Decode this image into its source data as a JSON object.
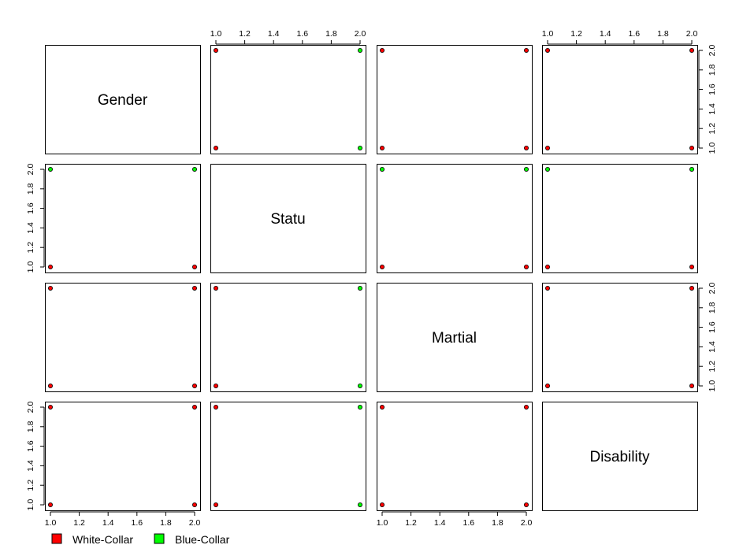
{
  "chart_data": {
    "type": "scatter",
    "variables": [
      "Gender",
      "Statu",
      "Martial",
      "Disability"
    ],
    "axis_range": [
      1.0,
      2.0
    ],
    "ticks": [
      "1.0",
      "1.2",
      "1.4",
      "1.6",
      "1.8",
      "2.0"
    ],
    "groups": [
      {
        "label": "White-Collar",
        "color": "#ff0000"
      },
      {
        "label": "Blue-Collar",
        "color": "#00ff00"
      }
    ],
    "points": [
      {
        "row": "Statu",
        "col": "Gender",
        "x": 1,
        "y": 1,
        "group": "White-Collar"
      },
      {
        "row": "Statu",
        "col": "Gender",
        "x": 2,
        "y": 1,
        "group": "White-Collar"
      },
      {
        "row": "Statu",
        "col": "Gender",
        "x": 1,
        "y": 2,
        "group": "Blue-Collar"
      },
      {
        "row": "Statu",
        "col": "Gender",
        "x": 2,
        "y": 2,
        "group": "Blue-Collar"
      },
      {
        "row": "Gender",
        "col": "Statu",
        "x": 1,
        "y": 1,
        "group": "White-Collar"
      },
      {
        "row": "Gender",
        "col": "Statu",
        "x": 1,
        "y": 2,
        "group": "White-Collar"
      },
      {
        "row": "Gender",
        "col": "Statu",
        "x": 2,
        "y": 1,
        "group": "Blue-Collar"
      },
      {
        "row": "Gender",
        "col": "Statu",
        "x": 2,
        "y": 2,
        "group": "Blue-Collar"
      },
      {
        "row": "Gender",
        "col": "Martial",
        "x": 1,
        "y": 1,
        "group": "White-Collar"
      },
      {
        "row": "Gender",
        "col": "Martial",
        "x": 2,
        "y": 1,
        "group": "White-Collar"
      },
      {
        "row": "Gender",
        "col": "Martial",
        "x": 1,
        "y": 2,
        "group": "White-Collar"
      },
      {
        "row": "Gender",
        "col": "Martial",
        "x": 2,
        "y": 2,
        "group": "White-Collar"
      },
      {
        "row": "Gender",
        "col": "Disability",
        "x": 1,
        "y": 1,
        "group": "White-Collar"
      },
      {
        "row": "Gender",
        "col": "Disability",
        "x": 2,
        "y": 1,
        "group": "White-Collar"
      },
      {
        "row": "Gender",
        "col": "Disability",
        "x": 1,
        "y": 2,
        "group": "White-Collar"
      },
      {
        "row": "Gender",
        "col": "Disability",
        "x": 2,
        "y": 2,
        "group": "White-Collar"
      },
      {
        "row": "Statu",
        "col": "Martial",
        "x": 1,
        "y": 1,
        "group": "White-Collar"
      },
      {
        "row": "Statu",
        "col": "Martial",
        "x": 2,
        "y": 1,
        "group": "White-Collar"
      },
      {
        "row": "Statu",
        "col": "Martial",
        "x": 1,
        "y": 2,
        "group": "Blue-Collar"
      },
      {
        "row": "Statu",
        "col": "Martial",
        "x": 2,
        "y": 2,
        "group": "Blue-Collar"
      },
      {
        "row": "Statu",
        "col": "Disability",
        "x": 1,
        "y": 1,
        "group": "White-Collar"
      },
      {
        "row": "Statu",
        "col": "Disability",
        "x": 2,
        "y": 1,
        "group": "White-Collar"
      },
      {
        "row": "Statu",
        "col": "Disability",
        "x": 1,
        "y": 2,
        "group": "Blue-Collar"
      },
      {
        "row": "Statu",
        "col": "Disability",
        "x": 2,
        "y": 2,
        "group": "Blue-Collar"
      },
      {
        "row": "Martial",
        "col": "Gender",
        "x": 1,
        "y": 1,
        "group": "White-Collar"
      },
      {
        "row": "Martial",
        "col": "Gender",
        "x": 2,
        "y": 1,
        "group": "White-Collar"
      },
      {
        "row": "Martial",
        "col": "Gender",
        "x": 1,
        "y": 2,
        "group": "White-Collar"
      },
      {
        "row": "Martial",
        "col": "Gender",
        "x": 2,
        "y": 2,
        "group": "White-Collar"
      },
      {
        "row": "Martial",
        "col": "Statu",
        "x": 1,
        "y": 1,
        "group": "White-Collar"
      },
      {
        "row": "Martial",
        "col": "Statu",
        "x": 1,
        "y": 2,
        "group": "White-Collar"
      },
      {
        "row": "Martial",
        "col": "Statu",
        "x": 2,
        "y": 1,
        "group": "Blue-Collar"
      },
      {
        "row": "Martial",
        "col": "Statu",
        "x": 2,
        "y": 2,
        "group": "Blue-Collar"
      },
      {
        "row": "Martial",
        "col": "Disability",
        "x": 1,
        "y": 1,
        "group": "White-Collar"
      },
      {
        "row": "Martial",
        "col": "Disability",
        "x": 2,
        "y": 1,
        "group": "White-Collar"
      },
      {
        "row": "Martial",
        "col": "Disability",
        "x": 1,
        "y": 2,
        "group": "White-Collar"
      },
      {
        "row": "Martial",
        "col": "Disability",
        "x": 2,
        "y": 2,
        "group": "White-Collar"
      },
      {
        "row": "Disability",
        "col": "Gender",
        "x": 1,
        "y": 1,
        "group": "White-Collar"
      },
      {
        "row": "Disability",
        "col": "Gender",
        "x": 2,
        "y": 1,
        "group": "White-Collar"
      },
      {
        "row": "Disability",
        "col": "Gender",
        "x": 1,
        "y": 2,
        "group": "White-Collar"
      },
      {
        "row": "Disability",
        "col": "Gender",
        "x": 2,
        "y": 2,
        "group": "White-Collar"
      },
      {
        "row": "Disability",
        "col": "Statu",
        "x": 1,
        "y": 1,
        "group": "White-Collar"
      },
      {
        "row": "Disability",
        "col": "Statu",
        "x": 1,
        "y": 2,
        "group": "White-Collar"
      },
      {
        "row": "Disability",
        "col": "Statu",
        "x": 2,
        "y": 1,
        "group": "Blue-Collar"
      },
      {
        "row": "Disability",
        "col": "Statu",
        "x": 2,
        "y": 2,
        "group": "Blue-Collar"
      },
      {
        "row": "Disability",
        "col": "Martial",
        "x": 1,
        "y": 1,
        "group": "White-Collar"
      },
      {
        "row": "Disability",
        "col": "Martial",
        "x": 2,
        "y": 1,
        "group": "White-Collar"
      },
      {
        "row": "Disability",
        "col": "Martial",
        "x": 1,
        "y": 2,
        "group": "White-Collar"
      },
      {
        "row": "Disability",
        "col": "Martial",
        "x": 2,
        "y": 2,
        "group": "White-Collar"
      }
    ],
    "axes": {
      "top": [
        "Statu",
        "Disability"
      ],
      "bottom": [
        "Gender",
        "Martial"
      ],
      "left": [
        "Statu",
        "Disability"
      ],
      "right": [
        "Gender",
        "Martial"
      ]
    },
    "legend_position": "bottom-left",
    "grid": false
  }
}
